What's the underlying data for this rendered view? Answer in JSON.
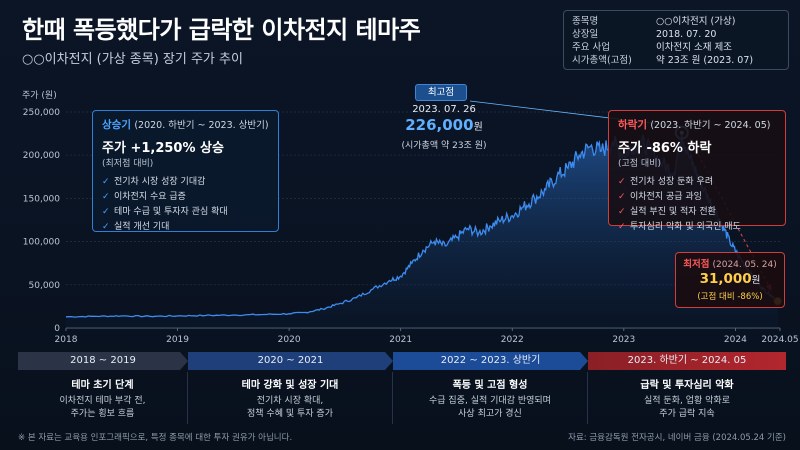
{
  "header": {
    "title": "한때 폭등했다가 급락한 이차전지 테마주",
    "subtitle": "○○이차전지 (가상 종목) 장기 주가 추이"
  },
  "info_box": [
    {
      "key": "종목명",
      "value": "○○이차전지 (가상)"
    },
    {
      "key": "상장일",
      "value": "2018. 07. 20"
    },
    {
      "key": "주요 사업",
      "value": "이차전지 소재 제조"
    },
    {
      "key": "시가총액(고점)",
      "value": "약 23조 원 (2023. 07)"
    }
  ],
  "callouts": {
    "rise": {
      "title": "상승기",
      "period": "(2020. 하반기 ~ 2023. 상반기)",
      "headline": "주가 +1,250% 상승",
      "note": "(최저점 대비)",
      "items": [
        "전기차 시장 성장 기대감",
        "이차전지 수요 급증",
        "테마 수급 및 투자자 관심 확대",
        "실적 개선 기대"
      ]
    },
    "fall": {
      "title": "하락기",
      "period": "(2023. 하반기 ~ 2024. 05)",
      "headline": "주가 -86% 하락",
      "note": "(고점 대비)",
      "items": [
        "전기차 성장 둔화 우려",
        "이차전지 공급 과잉",
        "실적 부진 및 적자 전환",
        "투자심리 악화 및 외국인 매도"
      ]
    }
  },
  "peak": {
    "badge": "최고점",
    "date": "2023. 07. 26",
    "price": "226,000",
    "unit": "원",
    "cap": "(시가총액 약 23조 원)"
  },
  "low": {
    "title": "최저점",
    "date": "(2024. 05. 24)",
    "price": "31,000",
    "unit": "원",
    "note": "(고점 대비 -86%)"
  },
  "phases": [
    {
      "label": "2018 ~ 2019",
      "heading": "테마 초기 단계",
      "lines": [
        "이차전지 테마 부각 전,",
        "주가는 횡보 흐름"
      ],
      "color": "#2a3446"
    },
    {
      "label": "2020 ~ 2021",
      "heading": "테마 강화 및 성장 기대",
      "lines": [
        "전기차 시장 확대,",
        "정책 수혜 및 투자 증가"
      ],
      "color": "#1f3f7a"
    },
    {
      "label": "2022 ~ 2023. 상반기",
      "heading": "폭등 및 고점 형성",
      "lines": [
        "수급 집중, 실적 기대감 반영되며",
        "사상 최고가 경신"
      ],
      "color": "#1c4c98"
    },
    {
      "label": "2023. 하반기 ~ 2024. 05",
      "heading": "급락 및 투자심리 악화",
      "lines": [
        "실적 둔화, 업황 악화로",
        "주가 급락 지속"
      ],
      "color": "#8a1f26"
    }
  ],
  "footnote": "※ 본 자료는 교육용 인포그래픽으로, 특정 종목에 대한 투자 권유가 아닙니다.",
  "source": "자료: 금융감독원 전자공시, 네이버 금융 (2024.05.24 기준)",
  "chart_data": {
    "type": "area",
    "ylabel": "주가 (원)",
    "ylim": [
      0,
      250000
    ],
    "yticks": [
      "0",
      "50,000",
      "100,000",
      "150,000",
      "200,000",
      "250,000"
    ],
    "xlim": [
      2018.0,
      2024.4
    ],
    "xticks": [
      {
        "value": 2018.0,
        "label": "2018"
      },
      {
        "value": 2019.0,
        "label": "2019"
      },
      {
        "value": 2020.0,
        "label": "2020"
      },
      {
        "value": 2021.0,
        "label": "2021"
      },
      {
        "value": 2022.0,
        "label": "2022"
      },
      {
        "value": 2023.0,
        "label": "2023"
      },
      {
        "value": 2024.0,
        "label": "2024"
      },
      {
        "value": 2024.4,
        "label": "2024.05"
      }
    ],
    "grid": true,
    "series": [
      {
        "color": "#3d8cf0",
        "points": [
          [
            2018.0,
            13000
          ],
          [
            2018.25,
            13500
          ],
          [
            2018.5,
            14000
          ],
          [
            2018.75,
            13500
          ],
          [
            2019.0,
            14000
          ],
          [
            2019.25,
            14500
          ],
          [
            2019.5,
            15000
          ],
          [
            2019.75,
            15500
          ],
          [
            2020.0,
            16500
          ],
          [
            2020.15,
            18000
          ],
          [
            2020.3,
            22000
          ],
          [
            2020.45,
            28000
          ],
          [
            2020.6,
            35000
          ],
          [
            2020.75,
            45000
          ],
          [
            2020.9,
            55000
          ],
          [
            2021.0,
            60000
          ],
          [
            2021.1,
            75000
          ],
          [
            2021.2,
            90000
          ],
          [
            2021.3,
            100000
          ],
          [
            2021.4,
            95000
          ],
          [
            2021.5,
            105000
          ],
          [
            2021.6,
            115000
          ],
          [
            2021.7,
            110000
          ],
          [
            2021.8,
            118000
          ],
          [
            2021.9,
            125000
          ],
          [
            2022.0,
            130000
          ],
          [
            2022.1,
            140000
          ],
          [
            2022.2,
            150000
          ],
          [
            2022.3,
            160000
          ],
          [
            2022.4,
            175000
          ],
          [
            2022.5,
            185000
          ],
          [
            2022.6,
            200000
          ],
          [
            2022.7,
            210000
          ],
          [
            2022.8,
            205000
          ],
          [
            2022.9,
            215000
          ],
          [
            2023.0,
            200000
          ],
          [
            2023.08,
            210000
          ],
          [
            2023.15,
            215000
          ],
          [
            2023.25,
            205000
          ],
          [
            2023.35,
            190000
          ],
          [
            2023.45,
            180000
          ],
          [
            2023.52,
            226000
          ],
          [
            2023.58,
            200000
          ],
          [
            2023.65,
            180000
          ],
          [
            2023.72,
            160000
          ],
          [
            2023.8,
            140000
          ],
          [
            2023.88,
            120000
          ],
          [
            2023.95,
            100000
          ],
          [
            2024.02,
            85000
          ],
          [
            2024.1,
            70000
          ],
          [
            2024.18,
            55000
          ],
          [
            2024.25,
            45000
          ],
          [
            2024.32,
            38000
          ],
          [
            2024.38,
            31000
          ]
        ]
      }
    ]
  }
}
